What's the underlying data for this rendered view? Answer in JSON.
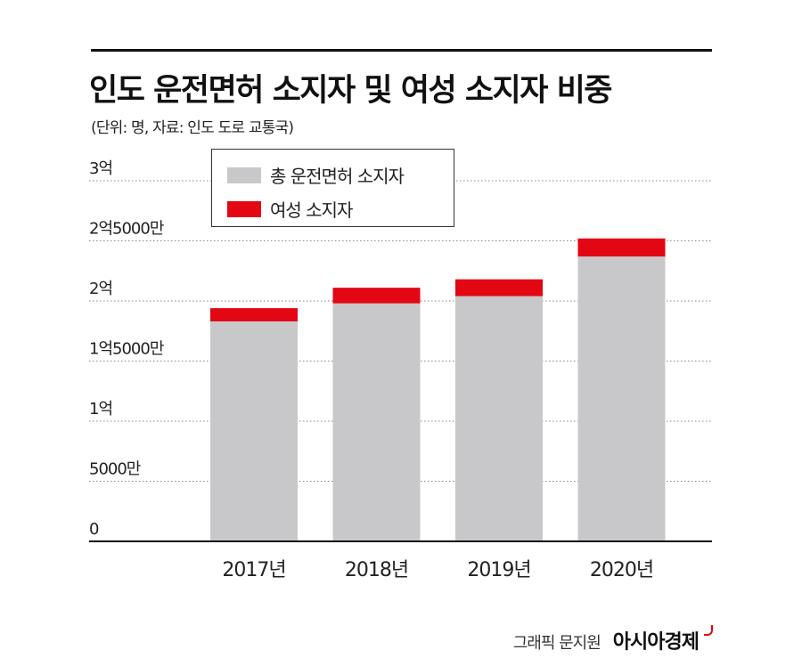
{
  "title": "인도 운전면허 소지자 및 여성 소지자 비중",
  "subtitle": "(단위: 명, 자료: 인도 도로 교통국)",
  "colors": {
    "total": "#c8c8ca",
    "female": "#e30613",
    "text": "#111111"
  },
  "chart_data": {
    "type": "bar",
    "stacked": true,
    "categories": [
      "2017년",
      "2018년",
      "2019년",
      "2020년"
    ],
    "series": [
      {
        "name": "총 운전면허 소지자",
        "values": [
          183000000,
          198000000,
          204000000,
          237000000
        ]
      },
      {
        "name": "여성 소지자",
        "values": [
          11000000,
          13000000,
          14000000,
          15000000
        ]
      }
    ],
    "ylim": [
      0,
      300000000
    ],
    "yticks": [
      0,
      50000000,
      100000000,
      150000000,
      200000000,
      250000000,
      300000000
    ],
    "ytick_labels": [
      "0",
      "5000만",
      "1억",
      "1억5000만",
      "2억",
      "2억5000만",
      "3억"
    ],
    "grid": true,
    "legend_position": "top-left"
  },
  "credit": {
    "text": "그래픽 문지원",
    "brand": "아시아경제"
  }
}
